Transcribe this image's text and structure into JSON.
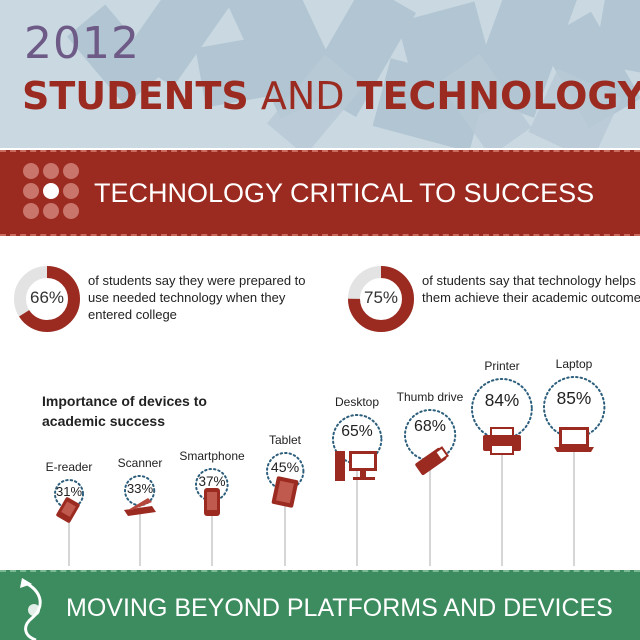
{
  "header": {
    "year": "2012",
    "title_part1": "STUDENTS",
    "title_part2": " AND ",
    "title_part3": "TECHNOLOGY"
  },
  "section1": {
    "title": "TECHNOLOGY CRITICAL TO SUCCESS"
  },
  "stats": [
    {
      "percent": "66%",
      "fraction": 0.66,
      "description": "of students say they were prepared to use needed technology when they entered college"
    },
    {
      "percent": "75%",
      "fraction": 0.75,
      "description": "of students say that technology helps them achieve their academic outcomes"
    }
  ],
  "devices_heading": "Importance of devices to academic success",
  "devices": [
    {
      "label": "E-reader",
      "percent": "31%",
      "value": 31,
      "icon": "ereader-icon"
    },
    {
      "label": "Scanner",
      "percent": "33%",
      "value": 33,
      "icon": "scanner-icon"
    },
    {
      "label": "Smartphone",
      "percent": "37%",
      "value": 37,
      "icon": "smartphone-icon"
    },
    {
      "label": "Tablet",
      "percent": "45%",
      "value": 45,
      "icon": "tablet-icon"
    },
    {
      "label": "Desktop",
      "percent": "65%",
      "value": 65,
      "icon": "desktop-icon"
    },
    {
      "label": "Thumb drive",
      "percent": "68%",
      "value": 68,
      "icon": "thumb-drive-icon"
    },
    {
      "label": "Printer",
      "percent": "84%",
      "value": 84,
      "icon": "printer-icon"
    },
    {
      "label": "Laptop",
      "percent": "85%",
      "value": 85,
      "icon": "laptop-icon"
    }
  ],
  "section2": {
    "title": "MOVING BEYOND PLATFORMS AND DEVICES"
  },
  "colors": {
    "brand_red": "#9b2a20",
    "brand_green": "#3d8c5f",
    "header_bg": "#c9d8e1",
    "year_purple": "#6e5a86"
  }
}
